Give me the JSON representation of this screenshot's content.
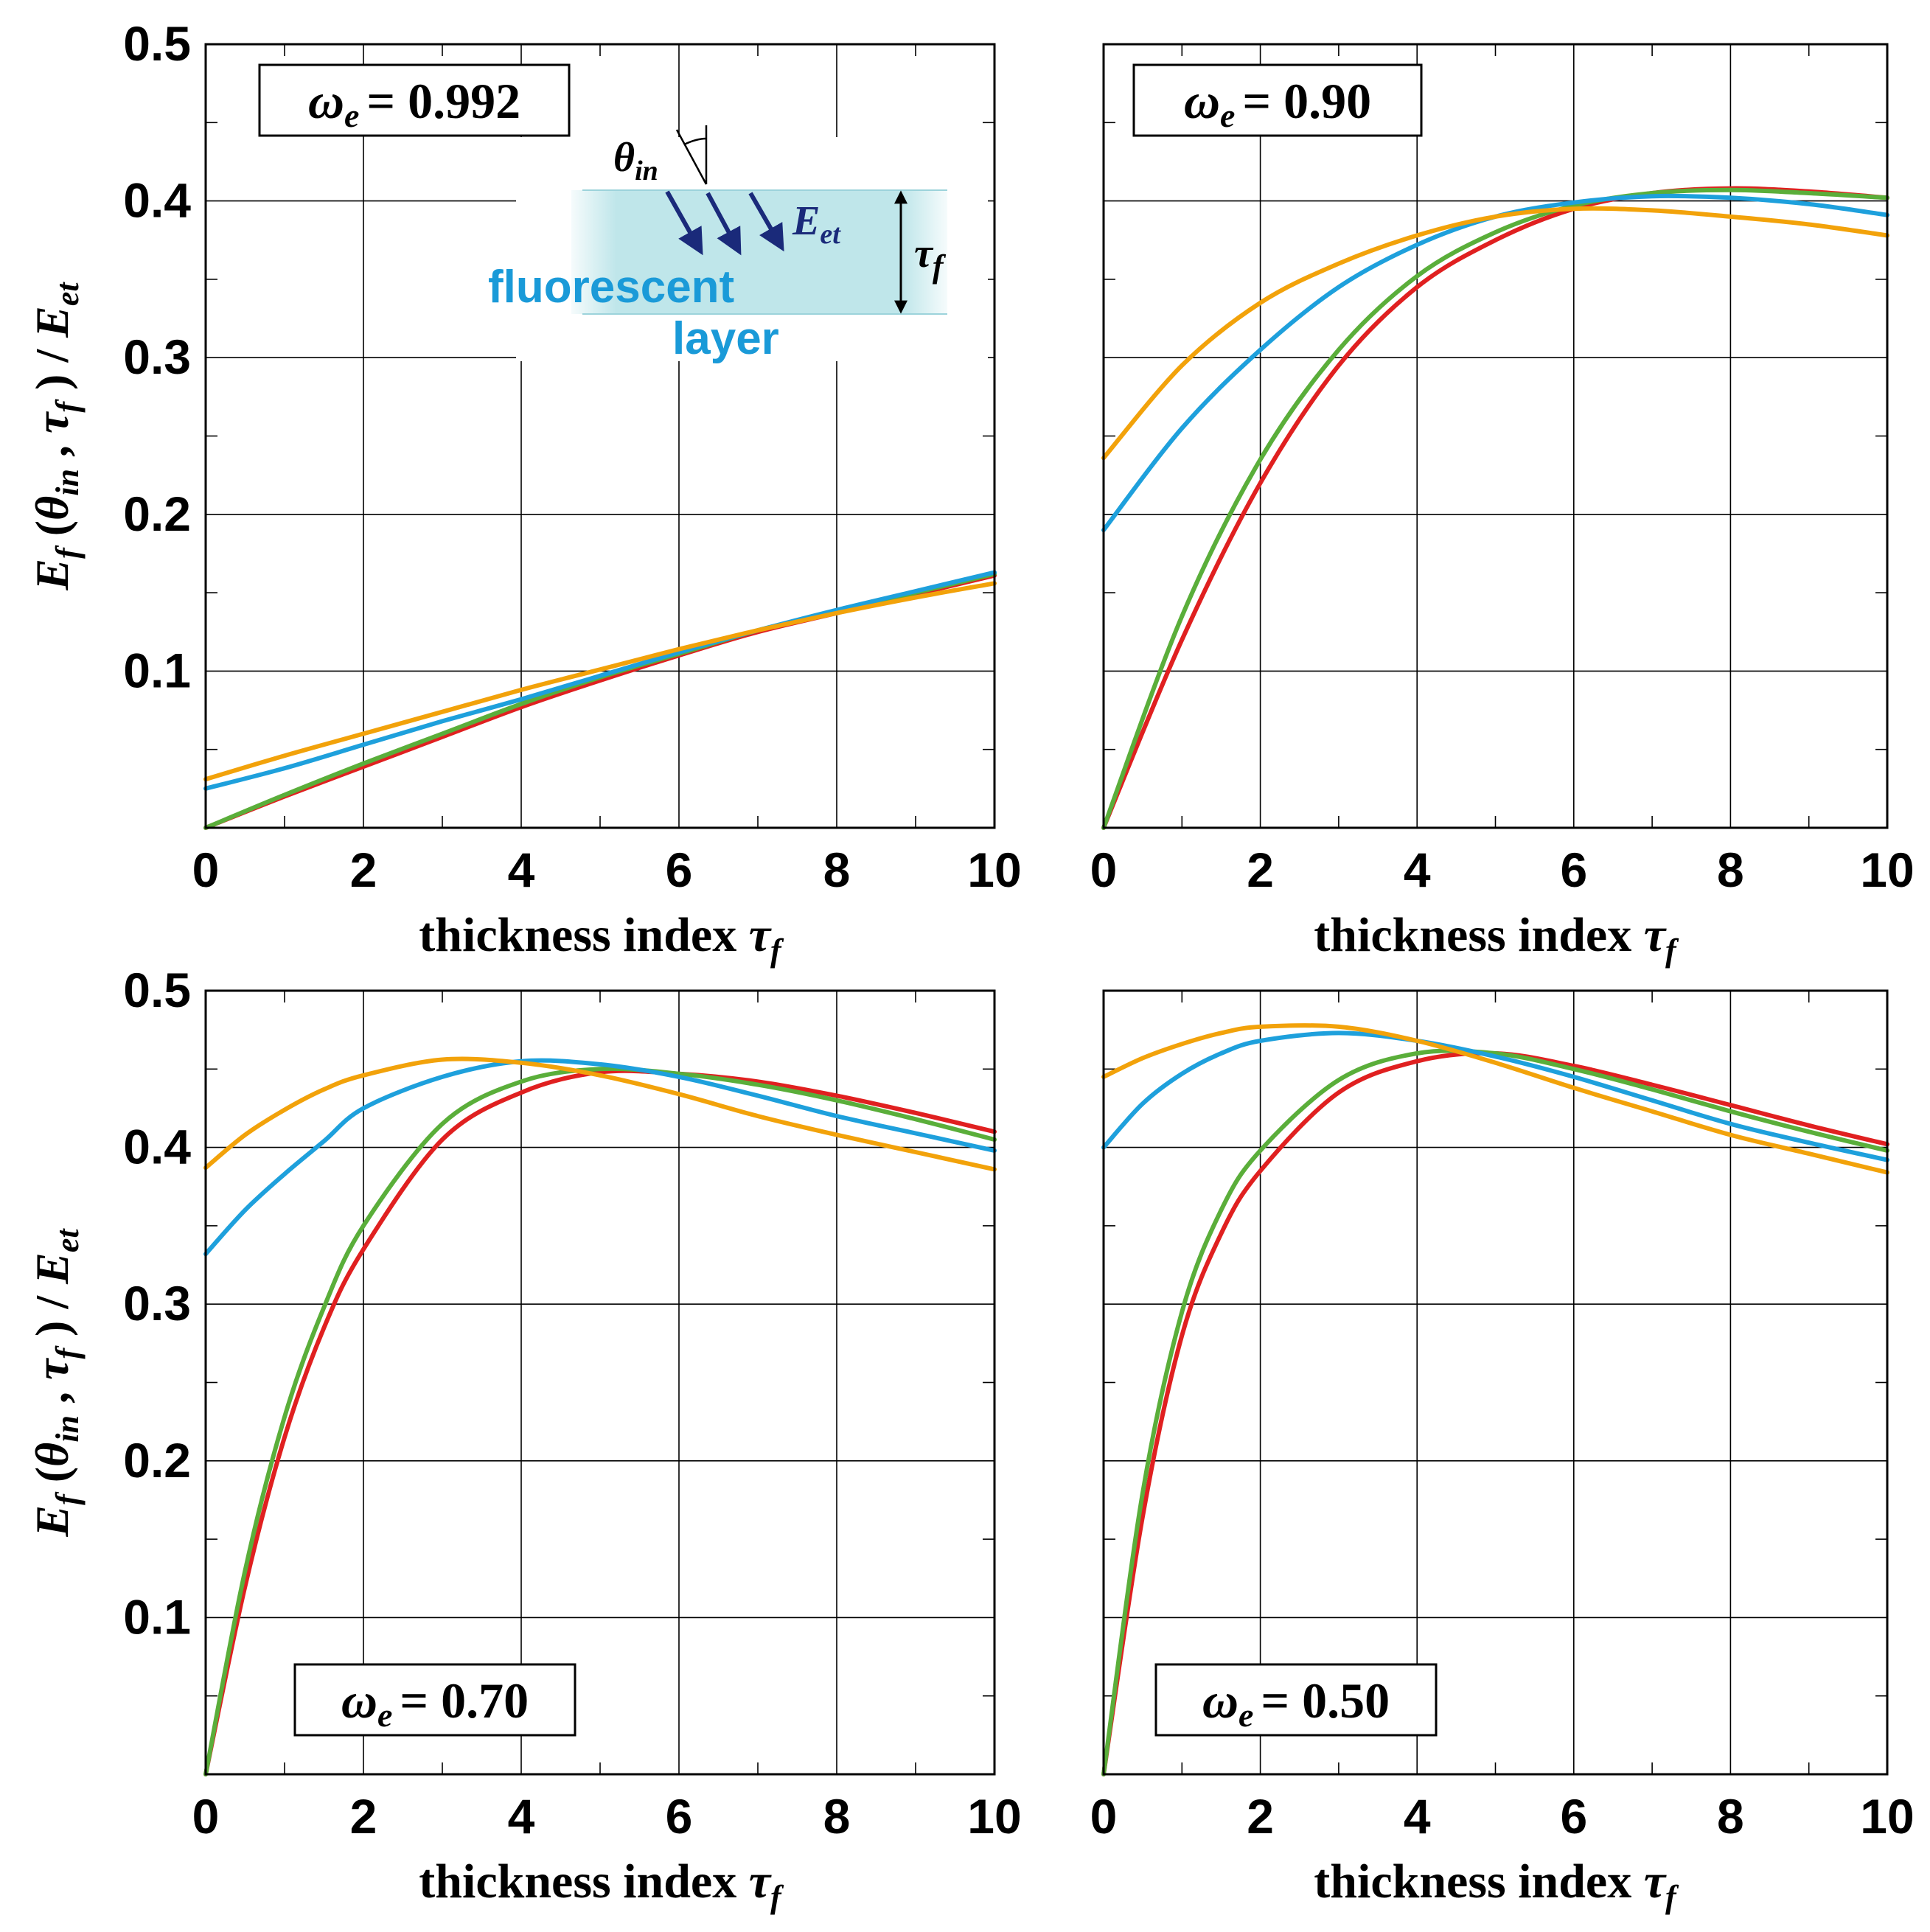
{
  "colors": {
    "red": "#e02020",
    "green": "#5aae3a",
    "blue": "#1ea0dc",
    "orange": "#f2a20a"
  },
  "chart_data": [
    {
      "type": "line",
      "panel": "top-left",
      "annotation": {
        "symbol": "ω",
        "sub": "e",
        "value": "= 0.992"
      },
      "xlabel": "thickness index τf",
      "xlabel_main": "thickness index ",
      "xlabel_sym": "τ",
      "xlabel_sub": "f",
      "ylabel": "Ef(θin, τf) / Eet",
      "xlim": [
        0,
        10
      ],
      "ylim": [
        0,
        0.5
      ],
      "xticks": [
        "0",
        "2",
        "4",
        "6",
        "8",
        "10"
      ],
      "yticks": [
        "0.1",
        "0.2",
        "0.3",
        "0.4",
        "0.5"
      ],
      "x": [
        0,
        1,
        2,
        3,
        4,
        5,
        6,
        7,
        8,
        9,
        10
      ],
      "series": [
        {
          "name": "red",
          "color": "#e02020",
          "values": [
            0.0,
            0.02,
            0.039,
            0.058,
            0.077,
            0.094,
            0.11,
            0.125,
            0.137,
            0.149,
            0.161
          ]
        },
        {
          "name": "green",
          "color": "#5aae3a",
          "values": [
            0.0,
            0.021,
            0.041,
            0.06,
            0.079,
            0.096,
            0.111,
            0.126,
            0.138,
            0.15,
            0.162
          ]
        },
        {
          "name": "blue",
          "color": "#1ea0dc",
          "values": [
            0.025,
            0.038,
            0.053,
            0.068,
            0.082,
            0.097,
            0.112,
            0.126,
            0.139,
            0.151,
            0.163
          ]
        },
        {
          "name": "orange",
          "color": "#f2a20a",
          "values": [
            0.031,
            0.046,
            0.06,
            0.074,
            0.088,
            0.101,
            0.114,
            0.126,
            0.137,
            0.147,
            0.156
          ]
        }
      ]
    },
    {
      "type": "line",
      "panel": "top-right",
      "annotation": {
        "symbol": "ω",
        "sub": "e",
        "value": "= 0.90"
      },
      "xlabel": "thickness index τf",
      "xlabel_main": "thickness index ",
      "xlabel_sym": "τ",
      "xlabel_sub": "f",
      "ylabel": "",
      "xlim": [
        0,
        10
      ],
      "ylim": [
        0,
        0.5
      ],
      "xticks": [
        "0",
        "2",
        "4",
        "6",
        "8",
        "10"
      ],
      "yticks": [],
      "x": [
        0,
        1,
        2,
        3,
        4,
        5,
        6,
        7,
        8,
        9,
        10
      ],
      "series": [
        {
          "name": "red",
          "color": "#e02020",
          "values": [
            0.0,
            0.12,
            0.22,
            0.295,
            0.345,
            0.375,
            0.395,
            0.405,
            0.408,
            0.406,
            0.402
          ]
        },
        {
          "name": "green",
          "color": "#5aae3a",
          "values": [
            0.0,
            0.135,
            0.235,
            0.305,
            0.352,
            0.38,
            0.397,
            0.405,
            0.407,
            0.405,
            0.402
          ]
        },
        {
          "name": "blue",
          "color": "#1ea0dc",
          "values": [
            0.19,
            0.255,
            0.305,
            0.345,
            0.372,
            0.39,
            0.399,
            0.403,
            0.402,
            0.398,
            0.391
          ]
        },
        {
          "name": "orange",
          "color": "#f2a20a",
          "values": [
            0.236,
            0.295,
            0.335,
            0.36,
            0.378,
            0.39,
            0.395,
            0.394,
            0.39,
            0.385,
            0.378
          ]
        }
      ]
    },
    {
      "type": "line",
      "panel": "bottom-left",
      "annotation": {
        "symbol": "ω",
        "sub": "e",
        "value": "= 0.70"
      },
      "xlabel": "thickness index τf",
      "xlabel_main": "thickness index ",
      "xlabel_sym": "τ",
      "xlabel_sub": "f",
      "ylabel": "Ef(θin, τf) / Eet",
      "xlim": [
        0,
        10
      ],
      "ylim": [
        0,
        0.5
      ],
      "xticks": [
        "0",
        "2",
        "4",
        "6",
        "8",
        "10"
      ],
      "yticks": [
        "0.1",
        "0.2",
        "0.3",
        "0.4",
        "0.5"
      ],
      "x": [
        0,
        0.5,
        1,
        1.5,
        2,
        3,
        4,
        5,
        6,
        7,
        8,
        9,
        10
      ],
      "series": [
        {
          "name": "red",
          "color": "#e02020",
          "values": [
            0.0,
            0.12,
            0.215,
            0.285,
            0.335,
            0.405,
            0.435,
            0.448,
            0.447,
            0.442,
            0.433,
            0.422,
            0.41
          ]
        },
        {
          "name": "green",
          "color": "#5aae3a",
          "values": [
            0.0,
            0.13,
            0.228,
            0.298,
            0.35,
            0.415,
            0.442,
            0.45,
            0.447,
            0.44,
            0.43,
            0.418,
            0.405
          ]
        },
        {
          "name": "blue",
          "color": "#1ea0dc",
          "values": [
            0.332,
            0.36,
            0.383,
            0.404,
            0.425,
            0.445,
            0.455,
            0.453,
            0.445,
            0.433,
            0.42,
            0.409,
            0.398
          ]
        },
        {
          "name": "orange",
          "color": "#f2a20a",
          "values": [
            0.387,
            0.408,
            0.424,
            0.437,
            0.446,
            0.456,
            0.454,
            0.446,
            0.434,
            0.42,
            0.408,
            0.397,
            0.386
          ]
        }
      ]
    },
    {
      "type": "line",
      "panel": "bottom-right",
      "annotation": {
        "symbol": "ω",
        "sub": "e",
        "value": "= 0.50"
      },
      "xlabel": "thickness index τf",
      "xlabel_main": "thickness index ",
      "xlabel_sym": "τ",
      "xlabel_sub": "f",
      "ylabel": "",
      "xlim": [
        0,
        10
      ],
      "ylim": [
        0,
        0.5
      ],
      "xticks": [
        "0",
        "2",
        "4",
        "6",
        "8",
        "10"
      ],
      "yticks": [],
      "x": [
        0,
        0.5,
        1,
        1.5,
        2,
        3,
        4,
        5,
        6,
        7,
        8,
        9,
        10
      ],
      "series": [
        {
          "name": "red",
          "color": "#e02020",
          "values": [
            0.0,
            0.165,
            0.28,
            0.345,
            0.385,
            0.435,
            0.455,
            0.46,
            0.452,
            0.44,
            0.427,
            0.414,
            0.402
          ]
        },
        {
          "name": "green",
          "color": "#5aae3a",
          "values": [
            0.0,
            0.18,
            0.295,
            0.36,
            0.398,
            0.443,
            0.46,
            0.46,
            0.45,
            0.437,
            0.423,
            0.41,
            0.398
          ]
        },
        {
          "name": "blue",
          "color": "#1ea0dc",
          "values": [
            0.4,
            0.428,
            0.447,
            0.46,
            0.468,
            0.473,
            0.468,
            0.458,
            0.445,
            0.43,
            0.415,
            0.403,
            0.392
          ]
        },
        {
          "name": "orange",
          "color": "#f2a20a",
          "values": [
            0.445,
            0.457,
            0.466,
            0.473,
            0.477,
            0.477,
            0.468,
            0.454,
            0.438,
            0.423,
            0.408,
            0.396,
            0.384
          ]
        }
      ]
    }
  ],
  "ylabel_parts": {
    "E": "E",
    "f": "f",
    "open": " (",
    "theta": "θ",
    "in": "in",
    "comma": " , ",
    "tau": "τ",
    "close": " ) / ",
    "E2": "E",
    "et": "et"
  },
  "inset": {
    "theta": "θ",
    "theta_sub": "in",
    "E": "E",
    "E_sub": "et",
    "tau": "τ",
    "tau_sub": "f",
    "line1": "fluorescent",
    "line2": "layer"
  }
}
